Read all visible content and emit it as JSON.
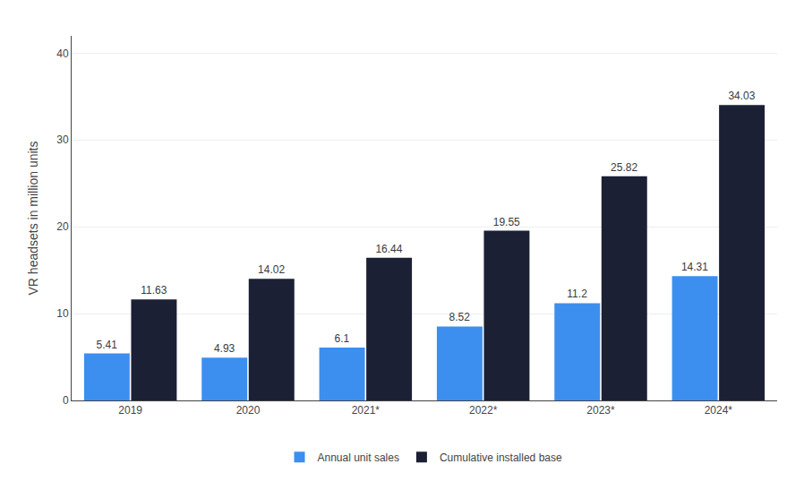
{
  "chart_data": {
    "type": "bar",
    "categories": [
      "2019",
      "2020",
      "2021*",
      "2022*",
      "2023*",
      "2024*"
    ],
    "series": [
      {
        "name": "Annual unit sales",
        "color": "#3d8fef",
        "values": [
          5.41,
          4.93,
          6.1,
          8.52,
          11.2,
          14.31
        ]
      },
      {
        "name": "Cumulative installed base",
        "color": "#1b2035",
        "values": [
          11.63,
          14.02,
          16.44,
          19.55,
          25.82,
          34.03
        ]
      }
    ],
    "ylabel": "VR headsets in million units",
    "ylim": [
      0,
      42
    ],
    "yticks": [
      0,
      10,
      20,
      30,
      40
    ],
    "grid": true,
    "legend": "bottom",
    "data_labels": true
  }
}
